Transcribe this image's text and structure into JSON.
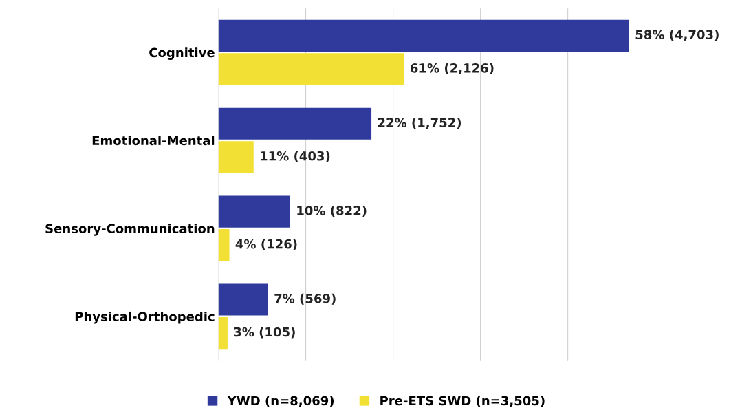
{
  "chart_data": {
    "type": "bar",
    "orientation": "horizontal",
    "categories": [
      "Cognitive",
      "Emotional-Mental",
      "Sensory-Communication",
      "Physical-Orthopedic"
    ],
    "series": [
      {
        "name": "YWD (n=8,069)",
        "color": "#2f3a9c",
        "values": [
          4703,
          1752,
          822,
          569
        ],
        "value_labels": [
          "58% (4,703)",
          "22% (1,752)",
          "10% (822)",
          "7% (569)"
        ]
      },
      {
        "name": "Pre-ETS SWD (n=3,505)",
        "color": "#f2e034",
        "values": [
          2126,
          403,
          126,
          105
        ],
        "value_labels": [
          "61% (2,126)",
          "11% (403)",
          "4% (126)",
          "3% (105)"
        ]
      }
    ],
    "xticks": [
      {
        "value": 0,
        "label": null
      },
      {
        "value": 1000,
        "label": null
      },
      {
        "value": 2000,
        "label": null
      },
      {
        "value": 3000,
        "label": null
      },
      {
        "value": 4000,
        "label": null
      },
      {
        "value": 5000,
        "label": null
      }
    ],
    "tick_labels": "y",
    "grid": "x",
    "legend": "bottom"
  }
}
